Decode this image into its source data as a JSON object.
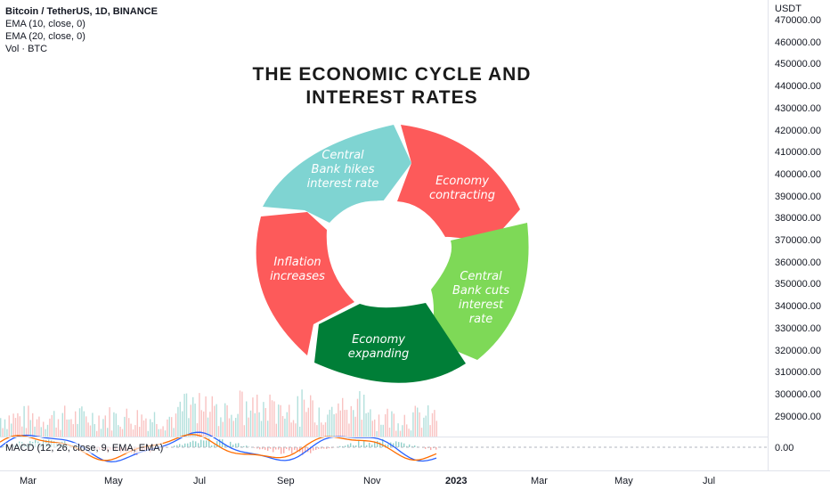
{
  "legend": {
    "symbol": "Bitcoin / TetherUS, 1D, BINANCE",
    "ema10": "EMA (10, close, 0)",
    "ema20": "EMA (20, close, 0)",
    "volume": "Vol · BTC"
  },
  "price_scale": {
    "currency": "USDT",
    "labels": [
      "470000.00",
      "460000.00",
      "450000.00",
      "440000.00",
      "430000.00",
      "420000.00",
      "410000.00",
      "400000.00",
      "390000.00",
      "380000.00",
      "370000.00",
      "360000.00",
      "350000.00",
      "340000.00",
      "330000.00",
      "320000.00",
      "310000.00",
      "300000.00",
      "290000.00"
    ]
  },
  "macd": {
    "label": "MACD (12, 26, close, 9, EMA, EMA)",
    "zero_label": "0.00"
  },
  "time_axis": {
    "labels": [
      "Mar",
      "May",
      "Jul",
      "Sep",
      "Nov",
      "2023",
      "Mar",
      "May",
      "Jul"
    ]
  },
  "infographic": {
    "title_line1": "THE ECONOMIC CYCLE AND",
    "title_line2": "INTEREST RATES",
    "segments": {
      "hikes": {
        "lines": [
          "Central",
          "Bank hikes",
          "interest rate"
        ],
        "color": "#7fd4d2"
      },
      "contracting": {
        "lines": [
          "Economy",
          "contracting"
        ],
        "color": "#fd5a5a"
      },
      "cuts": {
        "lines": [
          "Central",
          "Bank cuts",
          "interest",
          "rate"
        ],
        "color": "#7ed957"
      },
      "expanding": {
        "lines": [
          "Economy",
          "expanding"
        ],
        "color": "#007e37"
      },
      "inflation": {
        "lines": [
          "Inflation",
          "increases"
        ],
        "color": "#fd5a5a"
      }
    }
  }
}
